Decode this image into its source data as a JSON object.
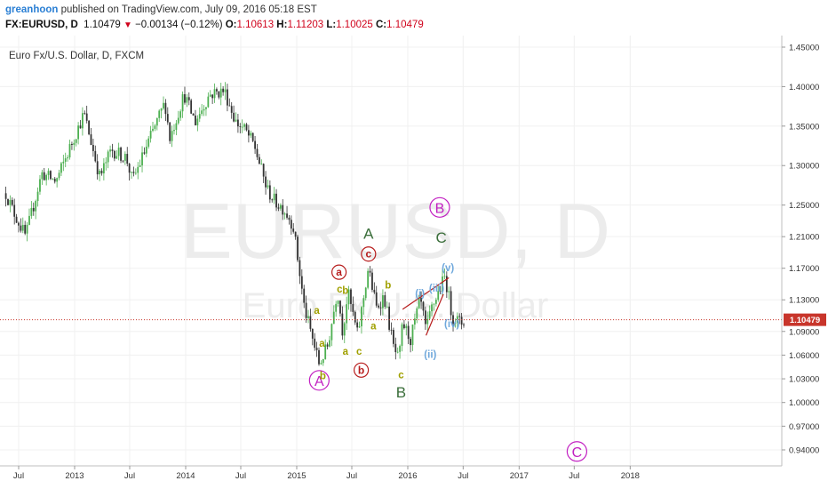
{
  "header": {
    "author": "greanhoon",
    "published": " published on TradingView.com, July 09, 2016 05:18 EST",
    "symbol": "FX:EURUSD, D",
    "last": "1.10479",
    "change": "−0.00134 (−0.12%)",
    "o_label": "O:",
    "o_val": "1.10613",
    "h_label": "H:",
    "h_val": "1.11203",
    "l_label": "L:",
    "l_val": "1.10025",
    "c_label": "C:",
    "c_val": "1.10479"
  },
  "chart_title": "Euro Fx/U.S. Dollar, D, FXCM",
  "watermark": {
    "symbol": "EURUSD, D",
    "name": "Euro Fx/U.S. Dollar"
  },
  "price_label": "1.10479",
  "colors": {
    "up": "#4caf50",
    "down": "#333333",
    "last_price": "#c8352b",
    "wave_magenta": "#c21fc2",
    "wave_red": "#b71c1c",
    "wave_olive": "#a0a000",
    "wave_green": "#3a6e3a",
    "wave_blue": "#6fa8dc"
  },
  "chart_data": {
    "type": "candlestick",
    "y_ticks": [
      1.45,
      1.4,
      1.35,
      1.3,
      1.25,
      1.21,
      1.17,
      1.13,
      1.09,
      1.06,
      1.03,
      1.0,
      0.97,
      0.94
    ],
    "y_tick_labels": [
      "1.45000",
      "1.40000",
      "1.35000",
      "1.30000",
      "1.25000",
      "1.21000",
      "1.17000",
      "1.13000",
      "1.09000",
      "1.06000",
      "1.03000",
      "1.00000",
      "0.97000",
      "0.94000"
    ],
    "x_ticks": [
      "2012-07-01",
      "2013-01-01",
      "2013-07-01",
      "2014-01-01",
      "2014-07-01",
      "2015-01-01",
      "2015-07-01",
      "2016-01-01",
      "2016-07-01",
      "2017-01-01",
      "2017-07-01",
      "2018-01-01"
    ],
    "x_tick_labels": [
      "Jul",
      "2013",
      "Jul",
      "2014",
      "Jul",
      "2015",
      "Jul",
      "2016",
      "Jul",
      "2017",
      "Jul",
      "2018"
    ],
    "last_price": 1.10479,
    "path_dates": [
      "2012-05-20",
      "2012-06-10",
      "2012-07-24",
      "2012-09-15",
      "2012-11-01",
      "2013-02-01",
      "2013-03-25",
      "2013-05-01",
      "2013-06-20",
      "2013-07-10",
      "2013-09-01",
      "2013-10-25",
      "2013-11-10",
      "2013-12-27",
      "2014-02-01",
      "2014-03-20",
      "2014-05-08",
      "2014-06-15",
      "2014-07-15",
      "2014-08-15",
      "2014-09-25",
      "2014-10-20",
      "2014-11-20",
      "2014-12-20",
      "2015-01-26",
      "2015-03-16",
      "2015-04-13",
      "2015-05-15",
      "2015-06-01",
      "2015-06-18",
      "2015-07-20",
      "2015-08-24",
      "2015-09-20",
      "2015-10-15",
      "2015-11-15",
      "2015-12-03",
      "2015-12-15",
      "2016-01-10",
      "2016-02-11",
      "2016-03-01",
      "2016-03-20",
      "2016-05-03",
      "2016-05-25",
      "2016-06-24",
      "2016-07-08"
    ],
    "path_close": [
      1.265,
      1.245,
      1.21,
      1.29,
      1.28,
      1.366,
      1.285,
      1.32,
      1.31,
      1.28,
      1.33,
      1.38,
      1.335,
      1.39,
      1.355,
      1.39,
      1.395,
      1.355,
      1.345,
      1.325,
      1.27,
      1.255,
      1.245,
      1.225,
      1.12,
      1.048,
      1.072,
      1.143,
      1.089,
      1.14,
      1.085,
      1.17,
      1.12,
      1.135,
      1.07,
      1.052,
      1.1,
      1.08,
      1.13,
      1.09,
      1.12,
      1.16,
      1.11,
      1.1,
      1.1048
    ],
    "annotations": [
      {
        "label": "A",
        "style": "circle",
        "color": "wave_magenta",
        "date": "2015-03-16",
        "price": 1.028
      },
      {
        "label": "B",
        "style": "circle",
        "color": "wave_magenta",
        "date": "2016-04-15",
        "price": 1.247
      },
      {
        "label": "C",
        "style": "circle",
        "color": "wave_magenta",
        "date": "2017-07-10",
        "price": 0.938
      },
      {
        "label": "a",
        "style": "circle",
        "color": "wave_red",
        "date": "2015-05-20",
        "price": 1.165
      },
      {
        "label": "b",
        "style": "circle",
        "color": "wave_red",
        "date": "2015-08-01",
        "price": 1.041
      },
      {
        "label": "c",
        "style": "circle",
        "color": "wave_red",
        "date": "2015-08-25",
        "price": 1.188
      },
      {
        "label": "A",
        "style": "text",
        "color": "wave_green",
        "date": "2015-08-25",
        "price": 1.213
      },
      {
        "label": "C",
        "style": "text",
        "color": "wave_green",
        "date": "2016-04-20",
        "price": 1.208
      },
      {
        "label": "B",
        "style": "text",
        "color": "wave_green",
        "date": "2015-12-10",
        "price": 1.012
      },
      {
        "label": "a",
        "style": "text",
        "color": "wave_olive",
        "date": "2015-03-08",
        "price": 1.118
      },
      {
        "label": "a",
        "style": "text",
        "color": "wave_olive",
        "date": "2015-03-25",
        "price": 1.076
      },
      {
        "label": "b",
        "style": "text",
        "color": "wave_olive",
        "date": "2015-03-28",
        "price": 1.035
      },
      {
        "label": "a",
        "style": "text",
        "color": "wave_olive",
        "date": "2015-06-10",
        "price": 1.066
      },
      {
        "label": "c",
        "style": "text",
        "color": "wave_olive",
        "date": "2015-05-22",
        "price": 1.145
      },
      {
        "label": "b",
        "style": "text",
        "color": "wave_olive",
        "date": "2015-06-10",
        "price": 1.143
      },
      {
        "label": "c",
        "style": "text",
        "color": "wave_olive",
        "date": "2015-07-25",
        "price": 1.066
      },
      {
        "label": "a",
        "style": "text",
        "color": "wave_olive",
        "date": "2015-09-10",
        "price": 1.098
      },
      {
        "label": "b",
        "style": "text",
        "color": "wave_olive",
        "date": "2015-10-28",
        "price": 1.15
      },
      {
        "label": "c",
        "style": "text",
        "color": "wave_olive",
        "date": "2015-12-10",
        "price": 1.036
      },
      {
        "label": "(i)",
        "style": "text",
        "color": "wave_blue",
        "date": "2016-02-10",
        "price": 1.139
      },
      {
        "label": "(ii)",
        "style": "text",
        "color": "wave_blue",
        "date": "2016-03-15",
        "price": 1.062
      },
      {
        "label": "(iii)",
        "style": "text",
        "color": "wave_blue",
        "date": "2016-04-05",
        "price": 1.146
      },
      {
        "label": "(iv)",
        "style": "text",
        "color": "wave_blue",
        "date": "2016-05-25",
        "price": 1.101
      },
      {
        "label": "(v)",
        "style": "text",
        "color": "wave_blue",
        "date": "2016-05-12",
        "price": 1.172
      }
    ],
    "trendlines": [
      {
        "color": "wave_red",
        "from": {
          "date": "2015-12-15",
          "price": 1.118
        },
        "to": {
          "date": "2016-05-15",
          "price": 1.158
        }
      },
      {
        "color": "wave_red",
        "from": {
          "date": "2016-03-01",
          "price": 1.085
        },
        "to": {
          "date": "2016-04-27",
          "price": 1.137
        }
      }
    ]
  }
}
